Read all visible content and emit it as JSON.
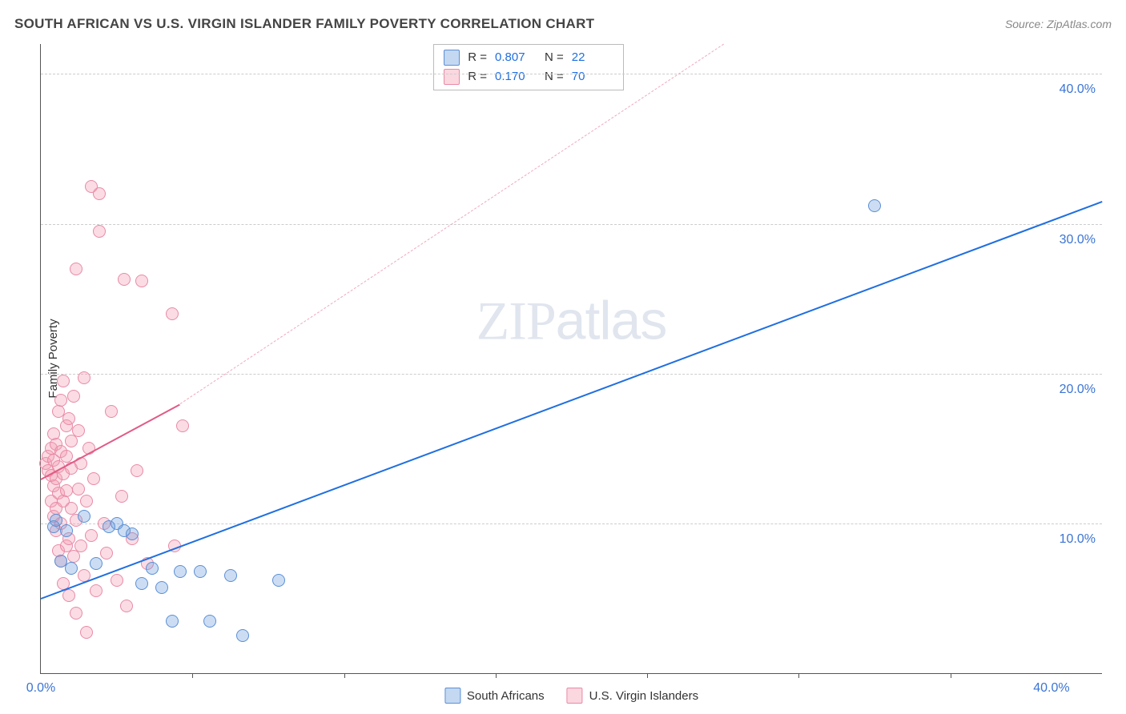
{
  "title": "SOUTH AFRICAN VS U.S. VIRGIN ISLANDER FAMILY POVERTY CORRELATION CHART",
  "source_prefix": "Source: ",
  "source_name": "ZipAtlas.com",
  "y_axis_label": "Family Poverty",
  "watermark_bold": "ZIP",
  "watermark_light": "atlas",
  "chart": {
    "type": "scatter",
    "background_color": "#ffffff",
    "grid_color": "#cccccc",
    "axis_color": "#555555",
    "tick_fontsize": 16,
    "tick_color": "#3b74d4",
    "xlim": [
      0,
      42
    ],
    "ylim": [
      0,
      42
    ],
    "y_ticks": [
      10,
      20,
      30,
      40
    ],
    "y_tick_labels": [
      "10.0%",
      "20.0%",
      "30.0%",
      "40.0%"
    ],
    "x_ticks": [
      0,
      40
    ],
    "x_tick_labels": [
      "0.0%",
      "40.0%"
    ],
    "x_minor_ticks": [
      6,
      12,
      18,
      24,
      30,
      36
    ],
    "marker_size": 16,
    "series": [
      {
        "name": "South Africans",
        "color_fill": "rgba(108,158,222,0.35)",
        "color_stroke": "#5a8fd6",
        "r_value": "0.807",
        "n_value": "22",
        "trend_solid": {
          "x1": 0,
          "y1": 5.0,
          "x2": 42,
          "y2": 31.5,
          "color": "#1f6fe0"
        },
        "points": [
          [
            0.5,
            9.8
          ],
          [
            0.6,
            10.2
          ],
          [
            0.8,
            7.5
          ],
          [
            1.0,
            9.5
          ],
          [
            1.2,
            7.0
          ],
          [
            1.7,
            10.5
          ],
          [
            2.2,
            7.3
          ],
          [
            2.7,
            9.8
          ],
          [
            3.0,
            10.0
          ],
          [
            3.3,
            9.5
          ],
          [
            3.6,
            9.3
          ],
          [
            4.0,
            6.0
          ],
          [
            4.4,
            7.0
          ],
          [
            4.8,
            5.7
          ],
          [
            5.2,
            3.5
          ],
          [
            5.5,
            6.8
          ],
          [
            6.3,
            6.8
          ],
          [
            6.7,
            3.5
          ],
          [
            7.5,
            6.5
          ],
          [
            8.0,
            2.5
          ],
          [
            9.4,
            6.2
          ],
          [
            33.0,
            31.2
          ]
        ]
      },
      {
        "name": "U.S. Virgin Islanders",
        "color_fill": "rgba(244,154,177,0.35)",
        "color_stroke": "#e88aa6",
        "r_value": "0.170",
        "n_value": "70",
        "trend_solid": {
          "x1": 0,
          "y1": 13.0,
          "x2": 5.5,
          "y2": 18.0,
          "color": "#e15a85"
        },
        "trend_dashed": {
          "x1": 5.5,
          "y1": 18.0,
          "x2": 27.0,
          "y2": 42.0,
          "color": "#f0a8bc"
        },
        "points": [
          [
            0.2,
            14.0
          ],
          [
            0.3,
            13.5
          ],
          [
            0.3,
            14.5
          ],
          [
            0.4,
            11.5
          ],
          [
            0.4,
            15.0
          ],
          [
            0.4,
            13.2
          ],
          [
            0.5,
            12.5
          ],
          [
            0.5,
            10.5
          ],
          [
            0.5,
            16.0
          ],
          [
            0.5,
            14.2
          ],
          [
            0.6,
            9.5
          ],
          [
            0.6,
            13.0
          ],
          [
            0.6,
            11.0
          ],
          [
            0.6,
            15.3
          ],
          [
            0.7,
            8.2
          ],
          [
            0.7,
            17.5
          ],
          [
            0.7,
            12.0
          ],
          [
            0.7,
            13.8
          ],
          [
            0.8,
            7.5
          ],
          [
            0.8,
            10.0
          ],
          [
            0.8,
            14.8
          ],
          [
            0.8,
            18.2
          ],
          [
            0.9,
            6.0
          ],
          [
            0.9,
            11.5
          ],
          [
            0.9,
            19.5
          ],
          [
            0.9,
            13.3
          ],
          [
            1.0,
            8.5
          ],
          [
            1.0,
            14.5
          ],
          [
            1.0,
            16.5
          ],
          [
            1.0,
            12.2
          ],
          [
            1.1,
            5.2
          ],
          [
            1.1,
            17.0
          ],
          [
            1.1,
            9.0
          ],
          [
            1.2,
            15.5
          ],
          [
            1.2,
            11.0
          ],
          [
            1.2,
            13.7
          ],
          [
            1.3,
            7.8
          ],
          [
            1.3,
            18.5
          ],
          [
            1.4,
            10.2
          ],
          [
            1.4,
            4.0
          ],
          [
            1.5,
            16.2
          ],
          [
            1.5,
            12.3
          ],
          [
            1.6,
            8.5
          ],
          [
            1.6,
            14.0
          ],
          [
            1.7,
            6.5
          ],
          [
            1.7,
            19.7
          ],
          [
            1.8,
            11.5
          ],
          [
            1.8,
            2.7
          ],
          [
            1.9,
            15.0
          ],
          [
            2.0,
            9.2
          ],
          [
            2.0,
            32.5
          ],
          [
            2.1,
            13.0
          ],
          [
            2.2,
            5.5
          ],
          [
            2.3,
            32.0
          ],
          [
            2.3,
            29.5
          ],
          [
            2.5,
            10.0
          ],
          [
            2.6,
            8.0
          ],
          [
            2.8,
            17.5
          ],
          [
            3.0,
            6.2
          ],
          [
            3.2,
            11.8
          ],
          [
            3.3,
            26.3
          ],
          [
            3.4,
            4.5
          ],
          [
            3.6,
            9.0
          ],
          [
            3.8,
            13.5
          ],
          [
            4.0,
            26.2
          ],
          [
            4.2,
            7.3
          ],
          [
            5.2,
            24.0
          ],
          [
            5.3,
            8.5
          ],
          [
            5.6,
            16.5
          ],
          [
            1.4,
            27.0
          ]
        ]
      }
    ]
  },
  "stats_legend": {
    "r_prefix": "R =",
    "n_prefix": "N ="
  },
  "bottom_legend": [
    {
      "label": "South Africans",
      "swatch": "blue"
    },
    {
      "label": "U.S. Virgin Islanders",
      "swatch": "pink"
    }
  ]
}
